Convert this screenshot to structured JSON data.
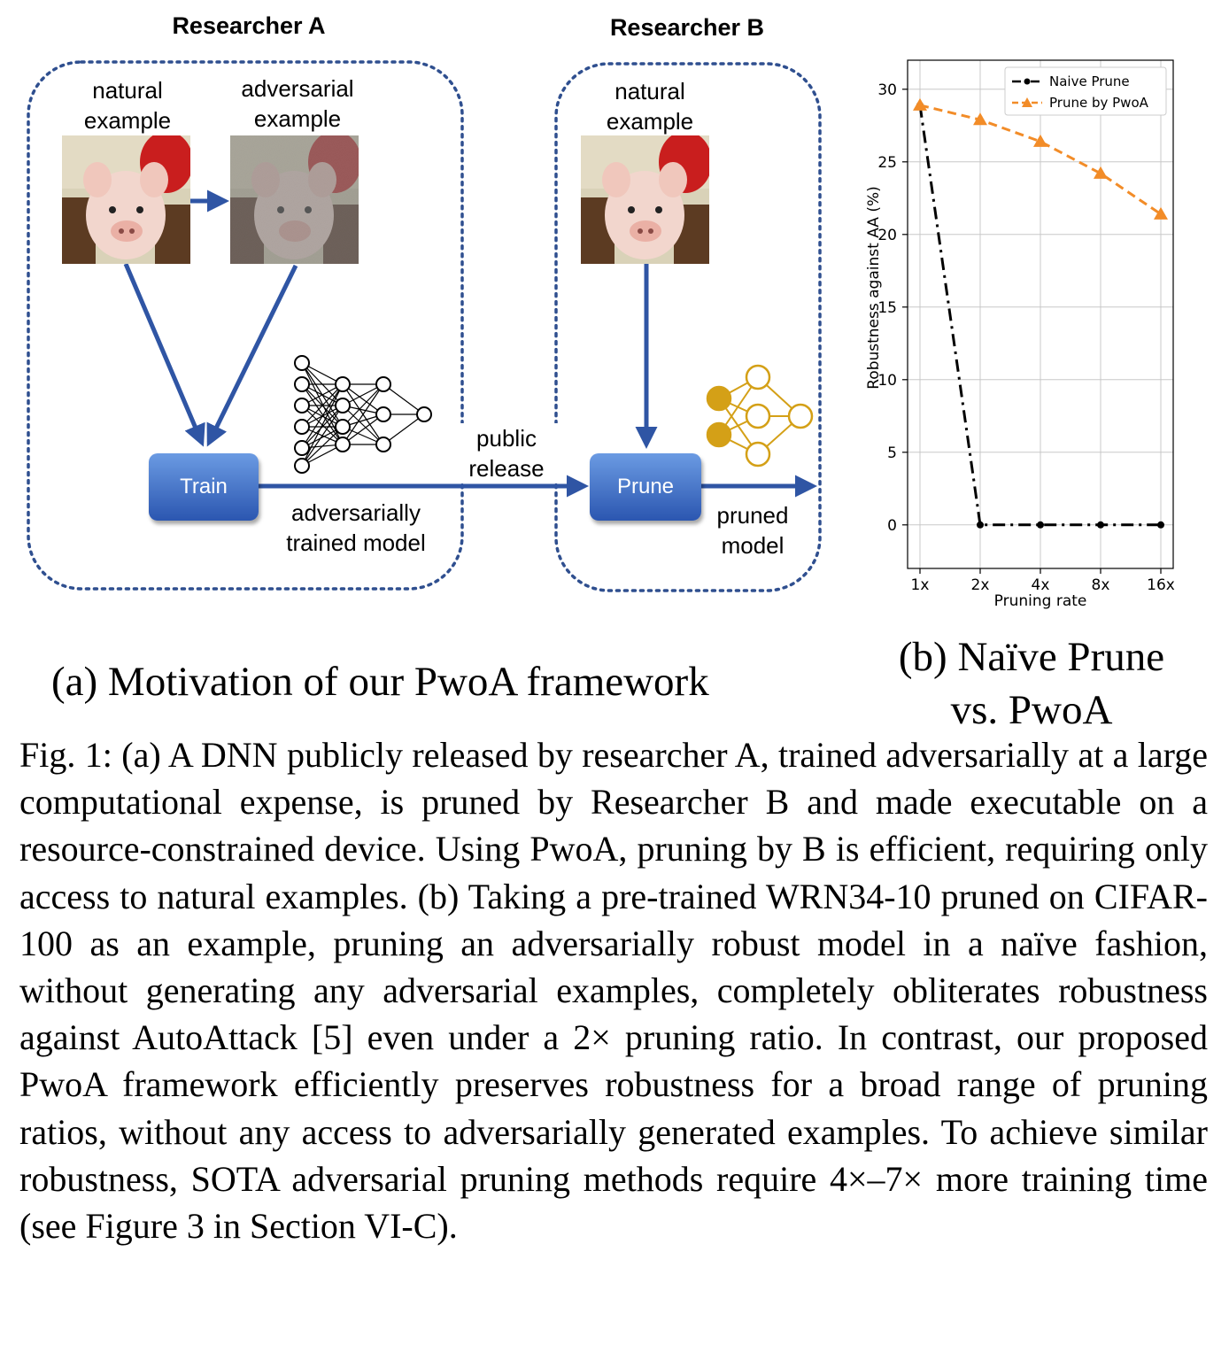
{
  "diagram": {
    "researcher_a_title": "Researcher A",
    "researcher_b_title": "Researcher B",
    "a_natural_label_1": "natural",
    "a_natural_label_2": "example",
    "a_adversarial_label_1": "adversarial",
    "a_adversarial_label_2": "example",
    "b_natural_label_1": "natural",
    "b_natural_label_2": "example",
    "train_button": "Train",
    "prune_button": "Prune",
    "adv_model_label_1": "adversarially",
    "adv_model_label_2": "trained model",
    "public_release_1": "public",
    "public_release_2": "release",
    "pruned_model_1": "pruned",
    "pruned_model_2": "model",
    "colors": {
      "arrow": "#2f55a4",
      "dotted_box": "#2f4f8f",
      "pruned_net": "#d4a017"
    },
    "icons": [
      "pig-photo",
      "noisy-pig-photo",
      "neural-network-icon",
      "pruned-network-icon"
    ]
  },
  "subcaption_a": "(a) Motivation of our PwoA framework",
  "subcaption_b_1": "(b) Naïve Prune",
  "subcaption_b_2": "vs. PwoA",
  "caption": "Fig. 1: (a) A DNN publicly released by researcher A, trained adversarially at a large computational expense, is pruned by Researcher B and made executable on a resource-constrained device. Using PwoA, pruning by B is efficient, requiring only access to natural examples. (b) Taking a pre-trained WRN34-10 pruned on CIFAR-100 as an example, pruning an adversarially robust model in a naïve fashion, without generating any adversarial examples, completely obliterates robustness against AutoAttack [5] even under a 2× pruning ratio. In contrast, our proposed PwoA framework efficiently preserves robustness for a broad range of pruning ratios, without any access to adversarially generated examples. To achieve similar robustness, SOTA adversarial pruning methods require 4×–7× more training time (see Figure 3 in Section VI-C).",
  "chart_data": {
    "type": "line",
    "categories": [
      "1x",
      "2x",
      "4x",
      "8x",
      "16x"
    ],
    "xlabel": "Pruning rate",
    "ylabel": "Robustness against AA (%)",
    "ylim": [
      -3,
      32
    ],
    "yticks": [
      0,
      5,
      10,
      15,
      20,
      25,
      30
    ],
    "grid": true,
    "legend_position": "top-right",
    "series": [
      {
        "name": "Naive Prune",
        "values": [
          28.9,
          0,
          0,
          0,
          0
        ],
        "color": "#000000",
        "style": "dashdot",
        "marker": "circle"
      },
      {
        "name": "Prune by PwoA",
        "values": [
          28.9,
          27.9,
          26.4,
          24.2,
          21.4
        ],
        "color": "#f28c28",
        "style": "dashed",
        "marker": "triangle"
      }
    ]
  }
}
